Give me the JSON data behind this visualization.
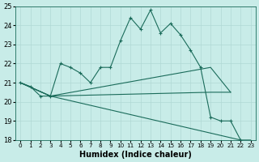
{
  "xlabel": "Humidex (Indice chaleur)",
  "xlim": [
    -0.5,
    23.5
  ],
  "ylim": [
    18,
    25
  ],
  "yticks": [
    18,
    19,
    20,
    21,
    22,
    23,
    24,
    25
  ],
  "xticks": [
    0,
    1,
    2,
    3,
    4,
    5,
    6,
    7,
    8,
    9,
    10,
    11,
    12,
    13,
    14,
    15,
    16,
    17,
    18,
    19,
    20,
    21,
    22,
    23
  ],
  "bg_color": "#c8ece8",
  "grid_color": "#b0d8d4",
  "line_color": "#1a6b5a",
  "line1_x": [
    0,
    1,
    2,
    3,
    4,
    5,
    6,
    7,
    8,
    9,
    10,
    11,
    12,
    13,
    14,
    15,
    16,
    17,
    18,
    19,
    20,
    21,
    22
  ],
  "line1_y": [
    21.0,
    20.8,
    20.3,
    20.3,
    22.0,
    21.8,
    21.5,
    21.0,
    21.8,
    21.8,
    23.2,
    24.4,
    23.8,
    24.8,
    23.6,
    24.1,
    23.5,
    22.7,
    21.8,
    19.2,
    19.0,
    19.0,
    18.0
  ],
  "line2_x": [
    0,
    3,
    19,
    21
  ],
  "line2_y": [
    21.0,
    20.3,
    21.8,
    20.5
  ],
  "line3_x": [
    0,
    3,
    19,
    21
  ],
  "line3_y": [
    21.0,
    20.3,
    20.5,
    20.5
  ],
  "line4_x": [
    0,
    3,
    22,
    23
  ],
  "line4_y": [
    21.0,
    20.3,
    18.0,
    18.0
  ]
}
